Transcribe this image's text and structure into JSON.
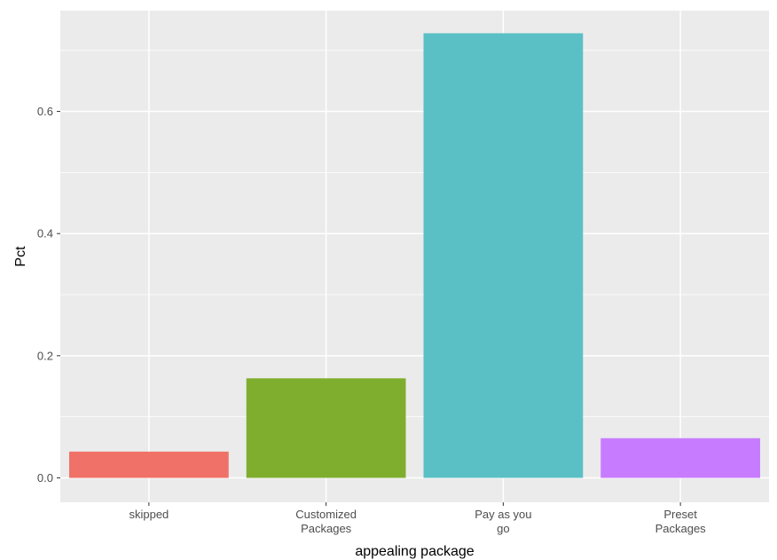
{
  "chart_data": {
    "type": "bar",
    "title": "",
    "xlabel": "appealing package",
    "ylabel": "Pct",
    "categories": [
      [
        "skipped"
      ],
      [
        "Customized",
        "Packages"
      ],
      [
        "Pay as you",
        "go"
      ],
      [
        "Preset",
        "Packages"
      ]
    ],
    "values": [
      0.043,
      0.163,
      0.728,
      0.065
    ],
    "colors": [
      "#F07167",
      "#7FAE2E",
      "#5BC0C5",
      "#C77CFF"
    ],
    "ylim": [
      -0.04,
      0.765
    ],
    "yticks": [
      0.0,
      0.2,
      0.4,
      0.6
    ],
    "ytick_labels": [
      "0.0",
      "0.2",
      "0.4",
      "0.6"
    ],
    "panel_color": "#EBEBEB",
    "grid_color": "#FFFFFF",
    "grid": true,
    "legend": "none"
  }
}
